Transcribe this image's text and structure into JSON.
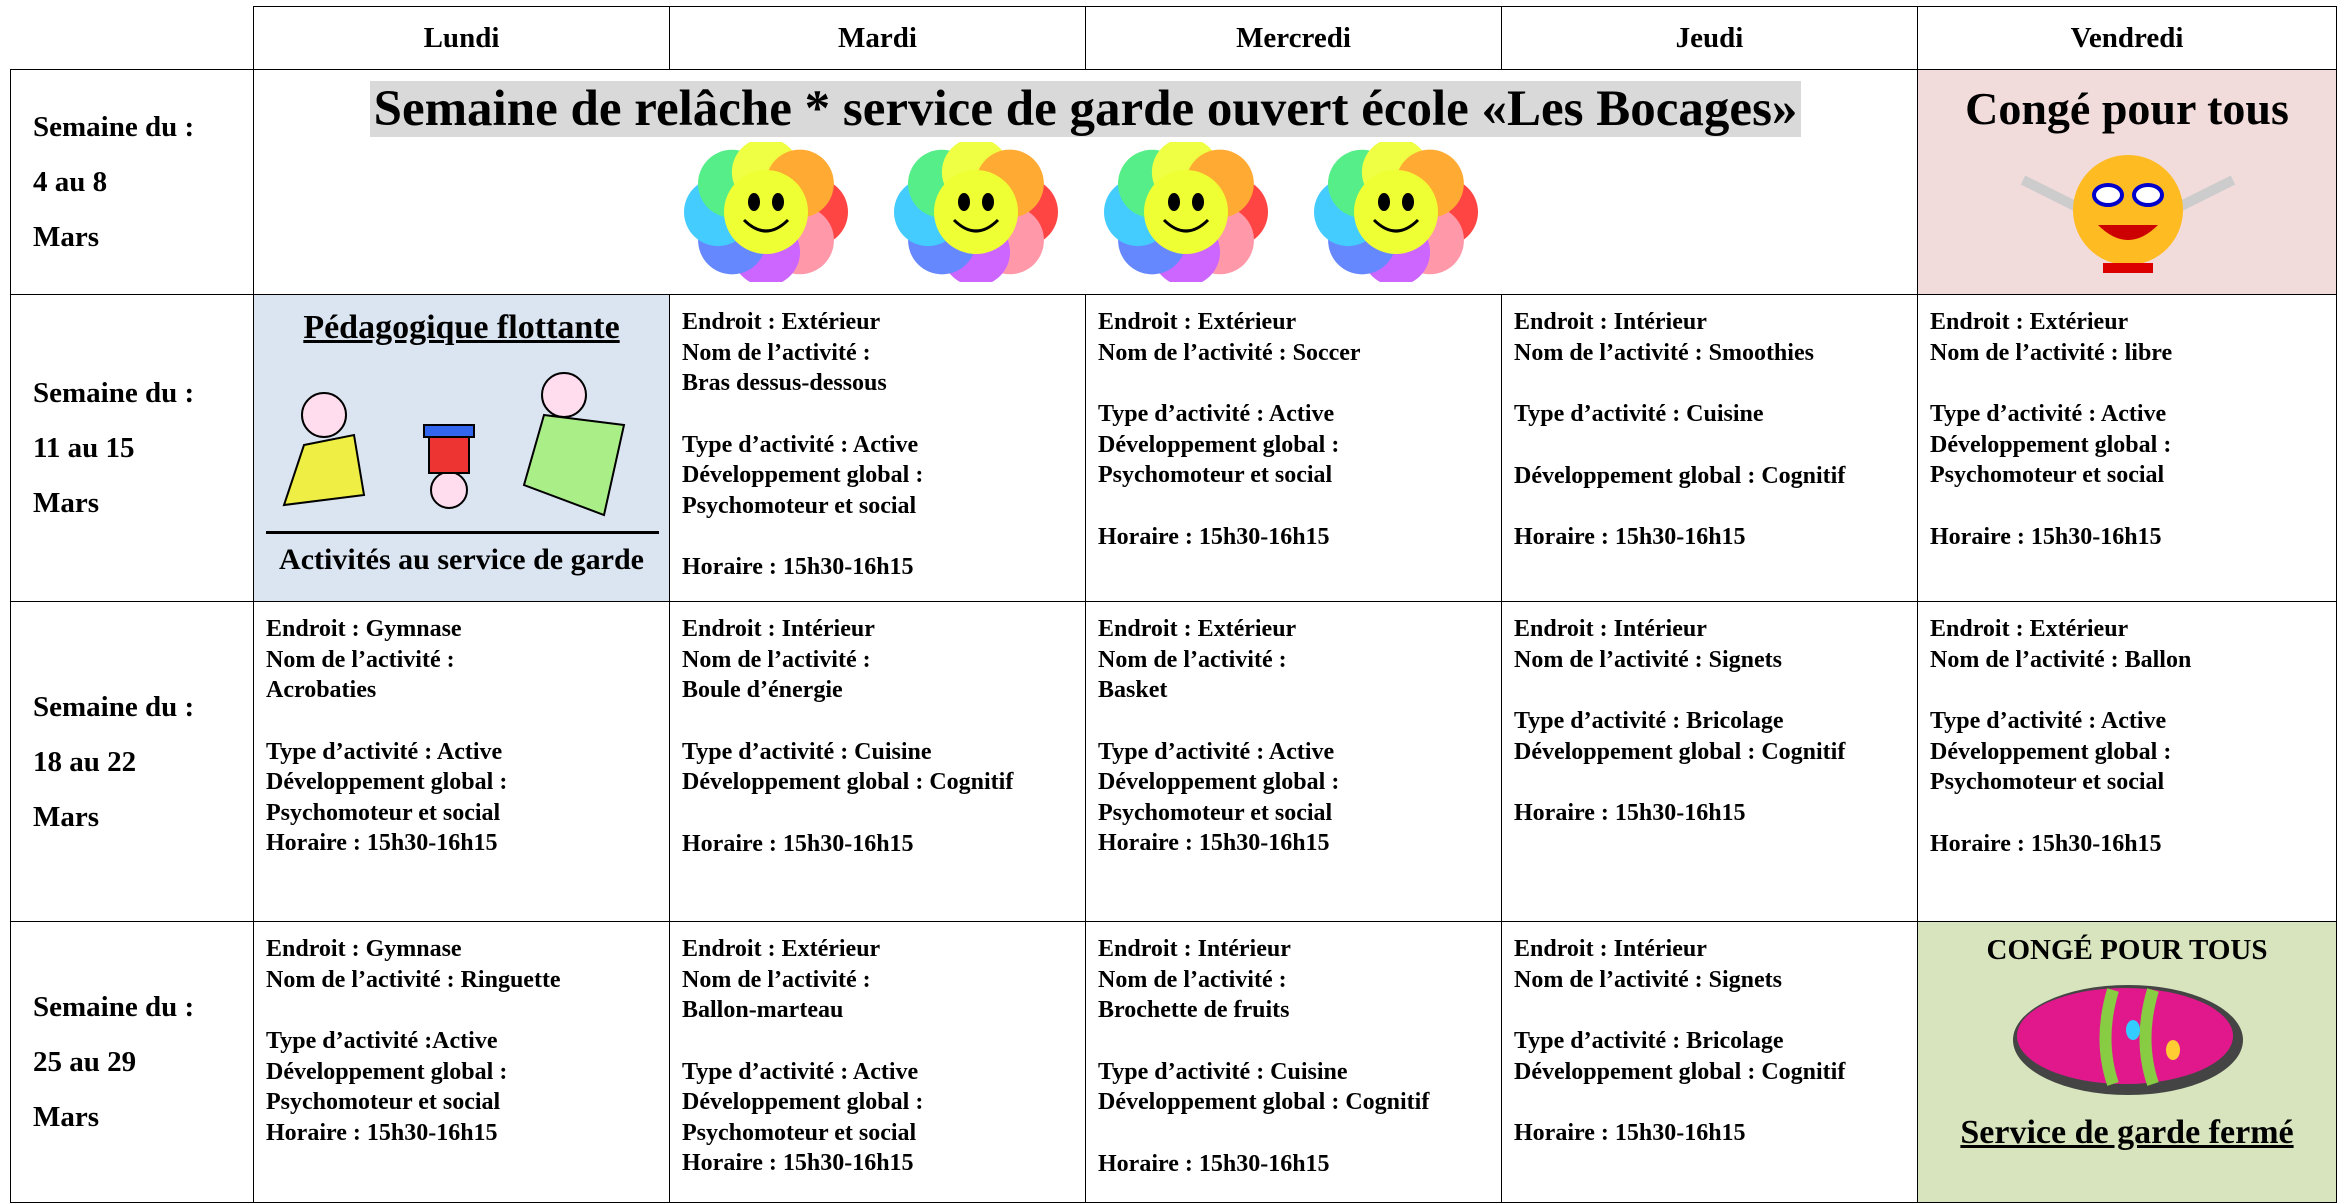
{
  "header": {
    "days": [
      "Lundi",
      "Mardi",
      "Mercredi",
      "Jeudi",
      "Vendredi"
    ]
  },
  "weeks": [
    {
      "label": [
        "Semaine du :",
        "4 au 8",
        "Mars"
      ],
      "banner": "Semaine de relâche * service de garde ouvert école «Les Bocages»",
      "friday": "Congé pour tous"
    },
    {
      "label": [
        "Semaine du :",
        "11 au 15",
        "Mars"
      ],
      "monday": {
        "title": "Pédagogique flottante",
        "caption": "Activités au service de garde"
      },
      "cells": [
        [
          [
            "Endroit : Extérieur",
            "Nom de l’activité :",
            "Bras dessus-dessous"
          ],
          [
            "Type d’activité : Active",
            "Développement global :",
            "Psychomoteur et social"
          ],
          [
            "Horaire : 15h30-16h15"
          ]
        ],
        [
          [
            "Endroit : Extérieur",
            "Nom de l’activité : Soccer"
          ],
          [
            "Type d’activité : Active",
            "Développement global :",
            "Psychomoteur et social"
          ],
          [
            "Horaire : 15h30-16h15"
          ]
        ],
        [
          [
            "Endroit : Intérieur",
            "Nom de l’activité : Smoothies"
          ],
          [
            "Type d’activité : Cuisine"
          ],
          [
            "Développement global : Cognitif"
          ],
          [
            "Horaire : 15h30-16h15"
          ]
        ],
        [
          [
            "Endroit : Extérieur",
            "Nom de l’activité : libre"
          ],
          [
            "Type d’activité : Active",
            "Développement global :",
            "Psychomoteur et social"
          ],
          [
            "Horaire : 15h30-16h15"
          ]
        ]
      ]
    },
    {
      "label": [
        "Semaine du :",
        "18 au 22",
        "Mars"
      ],
      "cells": [
        [
          [
            "Endroit : Gymnase",
            "Nom de l’activité :",
            "Acrobaties"
          ],
          [
            "Type d’activité : Active",
            "Développement global :",
            "Psychomoteur et social",
            "Horaire : 15h30-16h15"
          ]
        ],
        [
          [
            "Endroit : Intérieur",
            "Nom de l’activité :",
            "Boule d’énergie"
          ],
          [
            "Type d’activité : Cuisine",
            "Développement global : Cognitif"
          ],
          [
            "Horaire : 15h30-16h15"
          ]
        ],
        [
          [
            "Endroit : Extérieur",
            "Nom de l’activité :",
            "Basket"
          ],
          [
            "Type d’activité : Active",
            "Développement global :",
            "Psychomoteur et social",
            "Horaire : 15h30-16h15"
          ]
        ],
        [
          [
            "Endroit : Intérieur",
            "Nom de l’activité : Signets"
          ],
          [
            "Type d’activité : Bricolage",
            "Développement global : Cognitif"
          ],
          [
            "Horaire : 15h30-16h15"
          ]
        ],
        [
          [
            "Endroit : Extérieur",
            "Nom de l’activité : Ballon"
          ],
          [
            "Type d’activité : Active",
            "Développement global :",
            "Psychomoteur et social"
          ],
          [
            "Horaire : 15h30-16h15"
          ]
        ]
      ]
    },
    {
      "label": [
        "Semaine du :",
        "25 au 29",
        "Mars"
      ],
      "friday": {
        "title": "CONGÉ POUR TOUS",
        "caption": "Service de garde fermé"
      },
      "cells": [
        [
          [
            "Endroit : Gymnase",
            "Nom de l’activité : Ringuette"
          ],
          [
            "Type d’activité :Active",
            "Développement global :",
            "Psychomoteur et social",
            "Horaire : 15h30-16h15"
          ]
        ],
        [
          [
            "Endroit : Extérieur",
            "Nom de l’activité :",
            "Ballon-marteau"
          ],
          [
            "Type d’activité : Active",
            "Développement global :",
            "Psychomoteur et social",
            "Horaire : 15h30-16h15"
          ]
        ],
        [
          [
            "Endroit : Intérieur",
            "Nom de l’activité :",
            "Brochette de fruits"
          ],
          [
            "Type d’activité : Cuisine",
            "Développement global : Cognitif"
          ],
          [
            "Horaire : 15h30-16h15"
          ]
        ],
        [
          [
            "Endroit : Intérieur",
            "Nom de l’activité : Signets"
          ],
          [
            "Type d’activité : Bricolage",
            "Développement global : Cognitif"
          ],
          [
            "Horaire : 15h30-16h15"
          ]
        ]
      ]
    }
  ]
}
